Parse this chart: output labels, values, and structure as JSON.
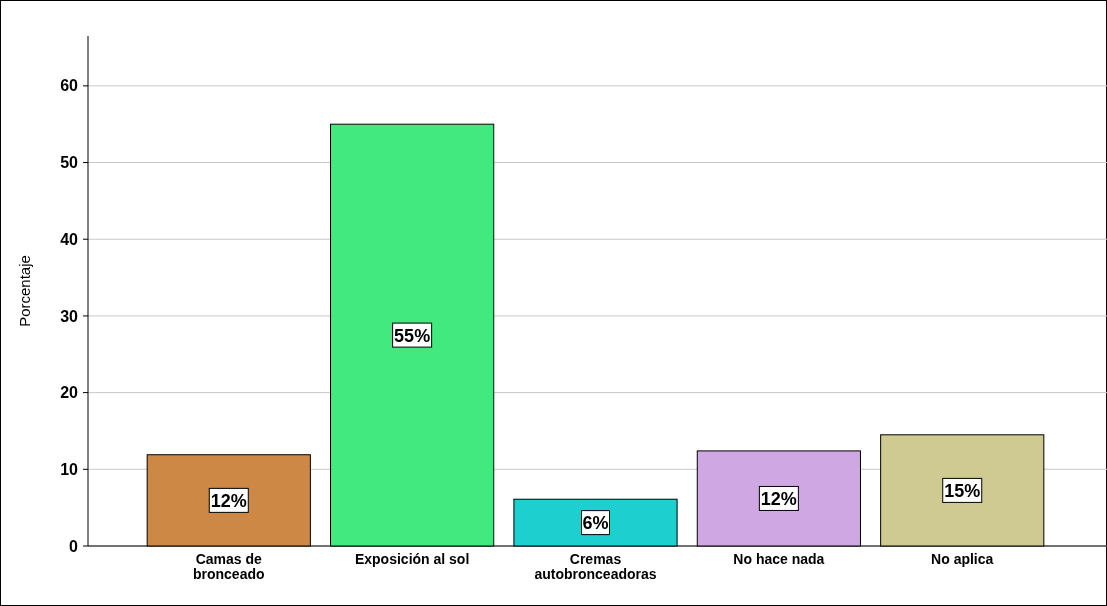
{
  "chart_data": {
    "type": "bar",
    "ylabel": "Porcentaje",
    "categories": [
      "Camas de bronceado",
      "Exposición al sol",
      "Cremas autobronceadoras",
      "No hace nada",
      "No aplica"
    ],
    "values": [
      11.9,
      55,
      6.1,
      12.4,
      14.5
    ],
    "colors": [
      "#cc8844",
      "#42e97f",
      "#1ecfcf",
      "#cfa8e3",
      "#cfca91"
    ],
    "value_labels": [
      "12%",
      "55%",
      "6%",
      "12%",
      "15%"
    ],
    "ylim": [
      0,
      66.5
    ],
    "yticks": [
      0,
      10,
      20,
      30,
      40,
      50,
      60
    ],
    "grid": "y"
  }
}
